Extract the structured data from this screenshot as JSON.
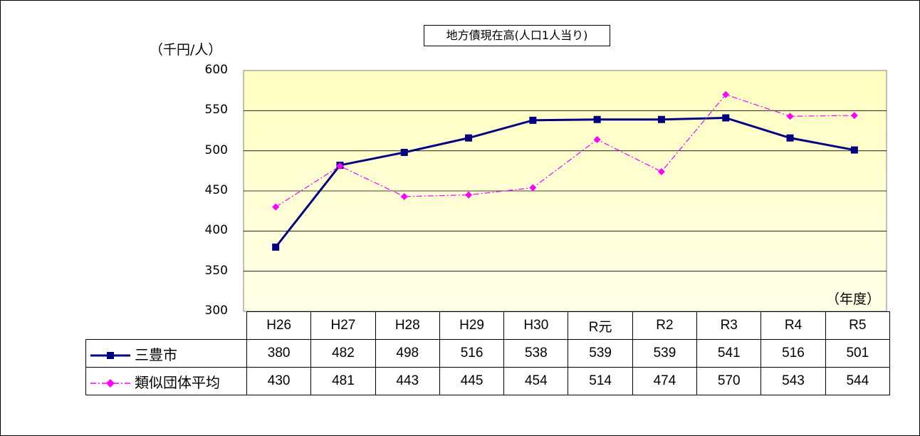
{
  "title": "地方債現在高(人口1人当り)",
  "y_unit": "（千円/人）",
  "x_unit": "（年度）",
  "colors": {
    "series1": "#000080",
    "series2": "#ff00ff",
    "plot_bg_top": "#ffffc0",
    "plot_bg_bottom": "#ffffe8"
  },
  "chart_data": {
    "type": "line",
    "title": "地方債現在高(人口1人当り)",
    "ylabel": "（千円/人）",
    "xlabel": "（年度）",
    "ylim": [
      300,
      600
    ],
    "yticks": [
      "300",
      "350",
      "400",
      "450",
      "500",
      "550",
      "600"
    ],
    "grid": true,
    "categories": [
      "H26",
      "H27",
      "H28",
      "H29",
      "H30",
      "R元",
      "R2",
      "R3",
      "R4",
      "R5"
    ],
    "series": [
      {
        "name": "三豊市",
        "values": [
          380,
          482,
          498,
          516,
          538,
          539,
          539,
          541,
          516,
          501
        ],
        "display": [
          "380",
          "482",
          "498",
          "516",
          "538",
          "539",
          "539",
          "541",
          "516",
          "501"
        ]
      },
      {
        "name": "類似団体平均",
        "values": [
          430,
          481,
          443,
          445,
          454,
          514,
          474,
          570,
          543,
          544
        ],
        "display": [
          "430",
          "481",
          "443",
          "445",
          "454",
          "514",
          "474",
          "570",
          "543",
          "544"
        ]
      }
    ]
  }
}
